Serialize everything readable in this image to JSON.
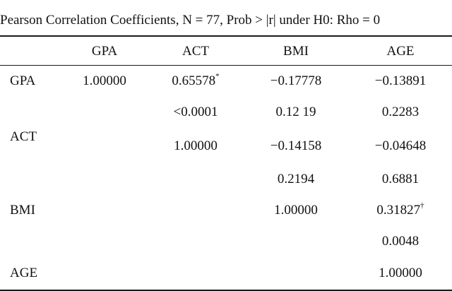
{
  "caption": "Pearson Correlation Coefficients, N = 77, Prob > |r| under H0: Rho = 0",
  "columns": [
    "GPA",
    "ACT",
    "BMI",
    "AGE"
  ],
  "rows": [
    {
      "label": "GPA",
      "values": [
        "1.00000",
        "0.65578",
        "−0.17778",
        "−0.13891"
      ],
      "sup": [
        "",
        "*",
        "",
        ""
      ]
    },
    {
      "label": "",
      "values": [
        "",
        "<0.0001",
        "0.12 19",
        "0.2283"
      ]
    },
    {
      "label": "ACT",
      "values": [
        "",
        "1.00000",
        "−0.14158",
        "−0.04648"
      ]
    },
    {
      "label": "",
      "values": [
        "",
        "",
        "0.2194",
        "0.6881"
      ]
    },
    {
      "label": "BMI",
      "values": [
        "",
        "",
        "1.00000",
        "0.31827"
      ],
      "sup": [
        "",
        "",
        "",
        "†"
      ]
    },
    {
      "label": "",
      "values": [
        "",
        "",
        "",
        "0.0048"
      ]
    },
    {
      "label": "AGE",
      "values": [
        "",
        "",
        "",
        "1.00000"
      ]
    }
  ]
}
